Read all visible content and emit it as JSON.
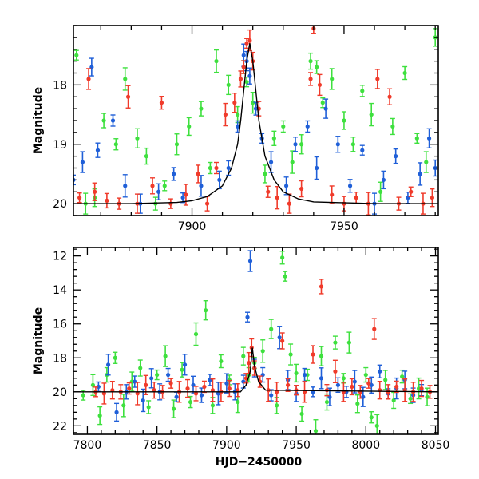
{
  "chart_data": [
    {
      "type": "scatter",
      "panel": "top",
      "xlabel": "",
      "ylabel": "Magnitude",
      "xlim": [
        7861,
        7981
      ],
      "ylim": [
        20.2,
        17.0
      ],
      "y_inverted": true,
      "xticks": [
        7900,
        7950
      ],
      "yticks": [
        18,
        19,
        20
      ],
      "colors": {
        "blue": "#1f5fd8",
        "green": "#3ee03e",
        "red": "#f03a2a",
        "model": "#000000"
      },
      "model_curve": {
        "x": [
          7861,
          7880,
          7895,
          7900,
          7905,
          7910,
          7913,
          7915,
          7916,
          7917,
          7918,
          7919,
          7920,
          7921,
          7922,
          7924,
          7927,
          7930,
          7935,
          7940,
          7960,
          7981
        ],
        "y": [
          20.0,
          20.0,
          19.98,
          19.95,
          19.88,
          19.7,
          19.4,
          19.0,
          18.6,
          18.1,
          17.6,
          17.3,
          17.6,
          18.1,
          18.6,
          19.2,
          19.6,
          19.8,
          19.92,
          19.97,
          20.0,
          20.0
        ]
      },
      "series": [
        {
          "color_key": "red",
          "points": [
            [
              7863,
              19.9
            ],
            [
              7866,
              17.9
            ],
            [
              7868,
              19.8
            ],
            [
              7872,
              19.95
            ],
            [
              7876,
              20.0
            ],
            [
              7879,
              18.2
            ],
            [
              7882,
              20.0
            ],
            [
              7887,
              19.7
            ],
            [
              7890,
              18.3
            ],
            [
              7893,
              20.0
            ],
            [
              7898,
              19.85
            ],
            [
              7902,
              19.5
            ],
            [
              7905,
              20.0
            ],
            [
              7908,
              19.4
            ],
            [
              7911,
              18.5
            ],
            [
              7914,
              18.3
            ],
            [
              7916,
              17.9
            ],
            [
              7917,
              17.7
            ],
            [
              7918,
              17.3
            ],
            [
              7919,
              17.25
            ],
            [
              7920,
              17.6
            ],
            [
              7922,
              18.4
            ],
            [
              7925,
              19.8
            ],
            [
              7928,
              19.9
            ],
            [
              7932,
              20.0
            ],
            [
              7936,
              19.75
            ],
            [
              7939,
              17.9
            ],
            [
              7940,
              17.05
            ],
            [
              7942,
              18.0
            ],
            [
              7946,
              19.85
            ],
            [
              7950,
              20.0
            ],
            [
              7954,
              19.9
            ],
            [
              7958,
              20.0
            ],
            [
              7961,
              17.9
            ],
            [
              7965,
              18.2
            ],
            [
              7968,
              20.0
            ],
            [
              7972,
              19.8
            ],
            [
              7976,
              20.0
            ],
            [
              7979,
              19.9
            ]
          ]
        },
        {
          "color_key": "blue",
          "points": [
            [
              7861,
              19.6
            ],
            [
              7864,
              19.3
            ],
            [
              7867,
              17.7
            ],
            [
              7869,
              19.1
            ],
            [
              7874,
              18.6
            ],
            [
              7878,
              19.7
            ],
            [
              7883,
              20.0
            ],
            [
              7889,
              19.8
            ],
            [
              7894,
              19.5
            ],
            [
              7897,
              19.9
            ],
            [
              7903,
              19.7
            ],
            [
              7909,
              19.6
            ],
            [
              7912,
              19.4
            ],
            [
              7915,
              18.7
            ],
            [
              7917,
              17.5
            ],
            [
              7918,
              17.6
            ],
            [
              7919,
              17.85
            ],
            [
              7921,
              18.4
            ],
            [
              7923,
              18.9
            ],
            [
              7926,
              19.3
            ],
            [
              7931,
              19.7
            ],
            [
              7934,
              19.0
            ],
            [
              7938,
              18.7
            ],
            [
              7941,
              19.4
            ],
            [
              7944,
              18.4
            ],
            [
              7948,
              19.0
            ],
            [
              7952,
              19.7
            ],
            [
              7956,
              19.1
            ],
            [
              7960,
              20.0
            ],
            [
              7963,
              19.6
            ],
            [
              7967,
              19.2
            ],
            [
              7971,
              19.9
            ],
            [
              7975,
              19.5
            ],
            [
              7978,
              18.9
            ],
            [
              7980,
              19.4
            ]
          ]
        },
        {
          "color_key": "green",
          "points": [
            [
              7862,
              17.5
            ],
            [
              7865,
              20.0
            ],
            [
              7868,
              19.9
            ],
            [
              7871,
              18.6
            ],
            [
              7875,
              19.0
            ],
            [
              7878,
              17.9
            ],
            [
              7882,
              18.9
            ],
            [
              7885,
              19.2
            ],
            [
              7888,
              20.0
            ],
            [
              7891,
              19.7
            ],
            [
              7895,
              19.0
            ],
            [
              7899,
              18.7
            ],
            [
              7903,
              18.4
            ],
            [
              7906,
              19.4
            ],
            [
              7908,
              17.6
            ],
            [
              7912,
              18.0
            ],
            [
              7915,
              18.5
            ],
            [
              7917,
              17.7
            ],
            [
              7918,
              17.95
            ],
            [
              7920,
              18.3
            ],
            [
              7924,
              19.5
            ],
            [
              7927,
              18.9
            ],
            [
              7930,
              18.7
            ],
            [
              7933,
              19.3
            ],
            [
              7936,
              19.0
            ],
            [
              7939,
              17.6
            ],
            [
              7941,
              17.7
            ],
            [
              7943,
              18.3
            ],
            [
              7946,
              17.9
            ],
            [
              7950,
              18.6
            ],
            [
              7953,
              19.0
            ],
            [
              7956,
              18.1
            ],
            [
              7959,
              18.5
            ],
            [
              7962,
              19.8
            ],
            [
              7966,
              18.7
            ],
            [
              7970,
              17.8
            ],
            [
              7974,
              18.9
            ],
            [
              7977,
              19.3
            ],
            [
              7980,
              17.2
            ]
          ]
        }
      ]
    },
    {
      "type": "scatter",
      "panel": "bottom",
      "xlabel": "HJD−2450000",
      "ylabel": "Magnitude",
      "xlim": [
        7790,
        8052
      ],
      "ylim": [
        22.5,
        11.5
      ],
      "y_inverted": true,
      "xticks": [
        7800,
        7850,
        7900,
        7950,
        8000,
        8050
      ],
      "yticks": [
        12,
        14,
        16,
        18,
        20,
        22
      ],
      "model_line": {
        "x": [
          7790,
          7910,
          7914,
          7917,
          7918.5,
          7920,
          7923,
          7928,
          8052
        ],
        "y": [
          20.0,
          20.0,
          19.6,
          18.8,
          17.4,
          18.5,
          19.4,
          19.9,
          20.0
        ]
      },
      "series": [
        {
          "color_key": "red",
          "points": [
            [
              7806,
              20.0
            ],
            [
              7812,
              20.1
            ],
            [
              7818,
              19.9
            ],
            [
              7824,
              20.0
            ],
            [
              7830,
              19.8
            ],
            [
              7836,
              20.1
            ],
            [
              7842,
              19.6
            ],
            [
              7848,
              19.9
            ],
            [
              7854,
              20.0
            ],
            [
              7860,
              19.5
            ],
            [
              7866,
              20.0
            ],
            [
              7872,
              19.8
            ],
            [
              7878,
              20.1
            ],
            [
              7884,
              19.7
            ],
            [
              7890,
              19.9
            ],
            [
              7896,
              20.0
            ],
            [
              7902,
              19.8
            ],
            [
              7908,
              19.9
            ],
            [
              7914,
              19.2
            ],
            [
              7916,
              18.3
            ],
            [
              7918,
              17.4
            ],
            [
              7920,
              18.6
            ],
            [
              7924,
              19.4
            ],
            [
              7930,
              19.9
            ],
            [
              7936,
              20.0
            ],
            [
              7940,
              17.0
            ],
            [
              7944,
              19.6
            ],
            [
              7950,
              19.9
            ],
            [
              7956,
              20.0
            ],
            [
              7962,
              17.8
            ],
            [
              7968,
              13.8
            ],
            [
              7972,
              19.9
            ],
            [
              7978,
              18.8
            ],
            [
              7984,
              20.0
            ],
            [
              7990,
              19.7
            ],
            [
              7996,
              20.0
            ],
            [
              8002,
              19.5
            ],
            [
              8006,
              16.3
            ],
            [
              8010,
              19.9
            ],
            [
              8016,
              20.0
            ],
            [
              8022,
              19.7
            ],
            [
              8028,
              19.9
            ],
            [
              8034,
              20.0
            ],
            [
              8040,
              19.8
            ],
            [
              8046,
              20.0
            ]
          ]
        },
        {
          "color_key": "blue",
          "points": [
            [
              7808,
              19.7
            ],
            [
              7815,
              18.4
            ],
            [
              7821,
              21.2
            ],
            [
              7828,
              20.0
            ],
            [
              7834,
              19.4
            ],
            [
              7840,
              20.5
            ],
            [
              7846,
              19.2
            ],
            [
              7852,
              20.0
            ],
            [
              7858,
              19.0
            ],
            [
              7864,
              20.3
            ],
            [
              7870,
              18.4
            ],
            [
              7876,
              19.6
            ],
            [
              7882,
              20.2
            ],
            [
              7888,
              19.3
            ],
            [
              7894,
              20.1
            ],
            [
              7900,
              19.5
            ],
            [
              7906,
              20.0
            ],
            [
              7912,
              19.4
            ],
            [
              7915,
              15.6
            ],
            [
              7917,
              12.3
            ],
            [
              7920,
              18.6
            ],
            [
              7926,
              19.0
            ],
            [
              7932,
              20.2
            ],
            [
              7938,
              16.8
            ],
            [
              7944,
              19.3
            ],
            [
              7950,
              20.1
            ],
            [
              7956,
              19.0
            ],
            [
              7962,
              20.0
            ],
            [
              7968,
              19.2
            ],
            [
              7974,
              20.3
            ],
            [
              7980,
              19.6
            ],
            [
              7986,
              20.0
            ],
            [
              7992,
              19.4
            ],
            [
              7998,
              20.3
            ],
            [
              8004,
              19.6
            ],
            [
              8010,
              18.8
            ],
            [
              8016,
              20.1
            ],
            [
              8022,
              19.8
            ],
            [
              8028,
              19.3
            ],
            [
              8034,
              20.2
            ],
            [
              8040,
              19.9
            ]
          ]
        },
        {
          "color_key": "green",
          "points": [
            [
              7797,
              20.2
            ],
            [
              7804,
              19.6
            ],
            [
              7809,
              21.4
            ],
            [
              7814,
              19.0
            ],
            [
              7820,
              18.0
            ],
            [
              7826,
              20.8
            ],
            [
              7832,
              19.4
            ],
            [
              7838,
              18.6
            ],
            [
              7844,
              20.9
            ],
            [
              7850,
              19.0
            ],
            [
              7856,
              17.9
            ],
            [
              7862,
              21.0
            ],
            [
              7868,
              18.7
            ],
            [
              7874,
              20.6
            ],
            [
              7878,
              16.6
            ],
            [
              7885,
              15.2
            ],
            [
              7890,
              20.8
            ],
            [
              7896,
              18.2
            ],
            [
              7902,
              19.3
            ],
            [
              7908,
              20.6
            ],
            [
              7912,
              17.9
            ],
            [
              7916,
              19.0
            ],
            [
              7920,
              18.3
            ],
            [
              7926,
              17.6
            ],
            [
              7932,
              16.3
            ],
            [
              7936,
              20.8
            ],
            [
              7940,
              12.1
            ],
            [
              7942,
              13.2
            ],
            [
              7946,
              17.8
            ],
            [
              7950,
              18.9
            ],
            [
              7954,
              21.3
            ],
            [
              7958,
              19.0
            ],
            [
              7964,
              22.3
            ],
            [
              7968,
              17.9
            ],
            [
              7972,
              20.6
            ],
            [
              7978,
              17.1
            ],
            [
              7984,
              19.2
            ],
            [
              7988,
              17.1
            ],
            [
              7994,
              20.7
            ],
            [
              8000,
              19.0
            ],
            [
              8004,
              21.5
            ],
            [
              8008,
              22.0
            ],
            [
              8014,
              19.3
            ],
            [
              8020,
              20.5
            ],
            [
              8026,
              19.1
            ],
            [
              8032,
              20.4
            ],
            [
              8038,
              19.8
            ],
            [
              8044,
              20.3
            ]
          ]
        }
      ]
    }
  ]
}
